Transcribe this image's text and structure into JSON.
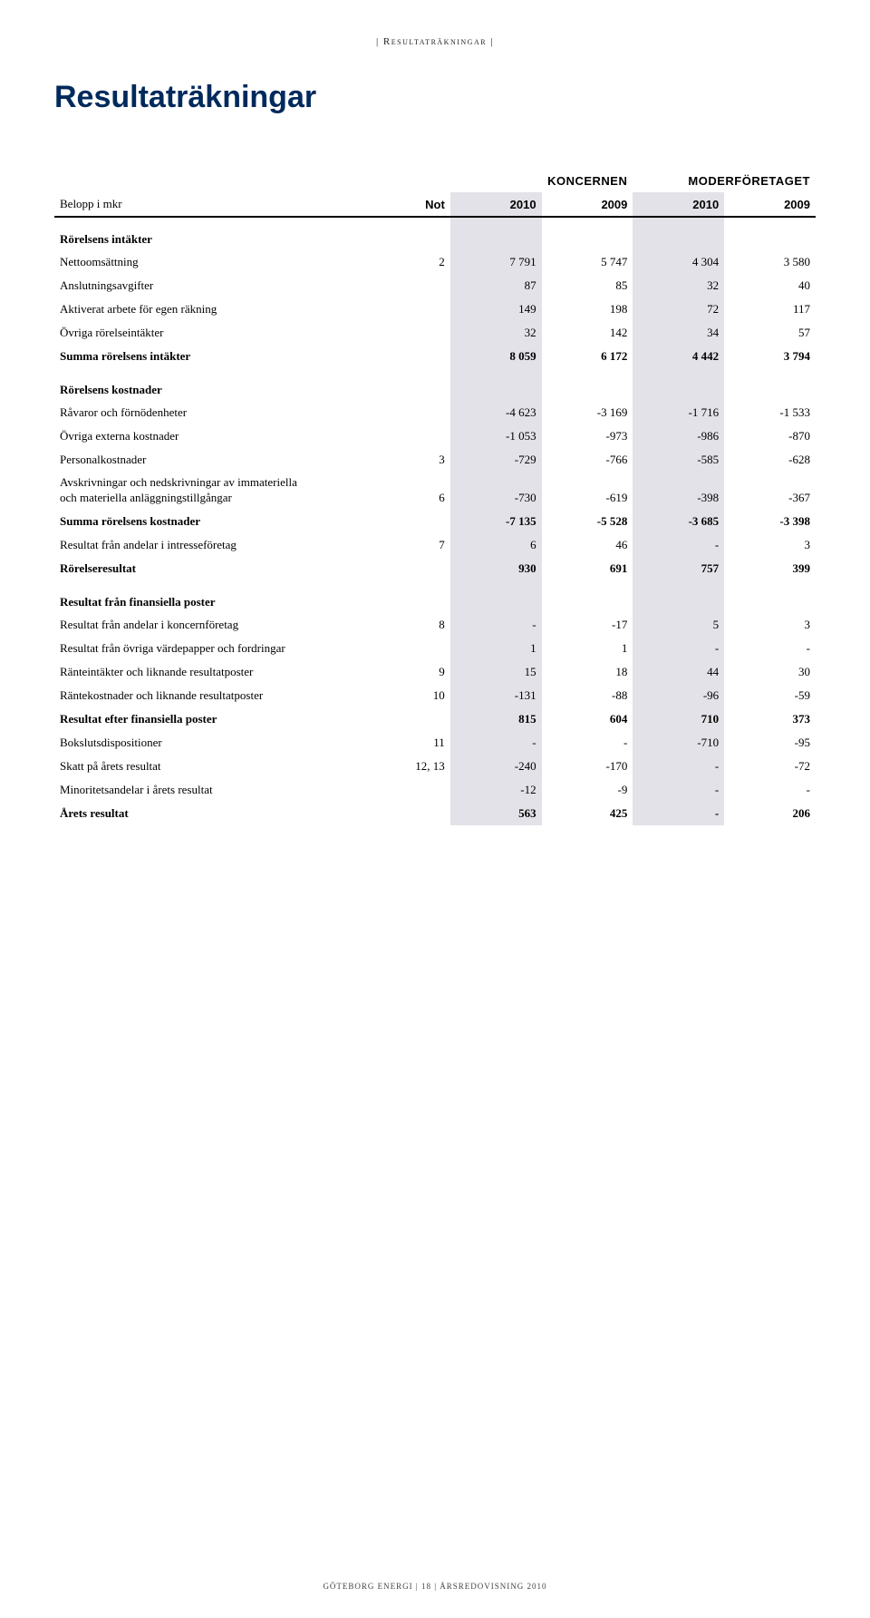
{
  "top_marker": "| Resultaträkningar |",
  "page_title": "Resultaträkningar",
  "column_groups": {
    "group1": "KONCERNEN",
    "group2": "MODERFÖRETAGET"
  },
  "columns": {
    "label": "Belopp i mkr",
    "not": "Not",
    "k10": "2010",
    "k09": "2009",
    "m10": "2010",
    "m09": "2009"
  },
  "sections": [
    {
      "title": "Rörelsens intäkter",
      "rows": [
        {
          "label": "Nettoomsättning",
          "not": "2",
          "k10": "7 791",
          "k09": "5 747",
          "m10": "4 304",
          "m09": "3 580"
        },
        {
          "label": "Anslutningsavgifter",
          "not": "",
          "k10": "87",
          "k09": "85",
          "m10": "32",
          "m09": "40"
        },
        {
          "label": "Aktiverat arbete för egen räkning",
          "not": "",
          "k10": "149",
          "k09": "198",
          "m10": "72",
          "m09": "117"
        },
        {
          "label": "Övriga rörelseintäkter",
          "not": "",
          "k10": "32",
          "k09": "142",
          "m10": "34",
          "m09": "57"
        }
      ],
      "total": {
        "label": "Summa rörelsens intäkter",
        "not": "",
        "k10": "8 059",
        "k09": "6 172",
        "m10": "4 442",
        "m09": "3 794"
      }
    },
    {
      "title": "Rörelsens kostnader",
      "rows": [
        {
          "label": "Råvaror och förnödenheter",
          "not": "",
          "k10": "-4 623",
          "k09": "-3 169",
          "m10": "-1 716",
          "m09": "-1 533"
        },
        {
          "label": "Övriga externa kostnader",
          "not": "",
          "k10": "-1 053",
          "k09": "-973",
          "m10": "-986",
          "m09": "-870"
        },
        {
          "label": "Personalkostnader",
          "not": "3",
          "k10": "-729",
          "k09": "-766",
          "m10": "-585",
          "m09": "-628"
        },
        {
          "label": "Avskrivningar och nedskrivningar av immateriella\noch materiella anläggningstillgångar",
          "not": "6",
          "k10": "-730",
          "k09": "-619",
          "m10": "-398",
          "m09": "-367",
          "multiline": true
        }
      ],
      "total": {
        "label": "Summa rörelsens kostnader",
        "not": "",
        "k10": "-7 135",
        "k09": "-5 528",
        "m10": "-3 685",
        "m09": "-3 398"
      }
    },
    {
      "title": "",
      "rows": [
        {
          "label": "Resultat från andelar i intresseföretag",
          "not": "7",
          "k10": "6",
          "k09": "46",
          "m10": "-",
          "m09": "3"
        }
      ],
      "total": {
        "label": "Rörelseresultat",
        "not": "",
        "k10": "930",
        "k09": "691",
        "m10": "757",
        "m09": "399"
      }
    },
    {
      "title": "Resultat från finansiella poster",
      "rows": [
        {
          "label": "Resultat från andelar i koncernföretag",
          "not": "8",
          "k10": "-",
          "k09": "-17",
          "m10": "5",
          "m09": "3"
        },
        {
          "label": "Resultat från övriga värdepapper och fordringar",
          "not": "",
          "k10": "1",
          "k09": "1",
          "m10": "-",
          "m09": "-"
        },
        {
          "label": "Ränteintäkter och liknande resultatposter",
          "not": "9",
          "k10": "15",
          "k09": "18",
          "m10": "44",
          "m09": "30"
        },
        {
          "label": "Räntekostnader och liknande resultatposter",
          "not": "10",
          "k10": "-131",
          "k09": "-88",
          "m10": "-96",
          "m09": "-59"
        }
      ],
      "total": {
        "label": "Resultat efter finansiella poster",
        "not": "",
        "k10": "815",
        "k09": "604",
        "m10": "710",
        "m09": "373"
      }
    },
    {
      "title": "",
      "rows": [
        {
          "label": "Bokslutsdispositioner",
          "not": "11",
          "k10": "-",
          "k09": "-",
          "m10": "-710",
          "m09": "-95"
        },
        {
          "label": "Skatt på årets resultat",
          "not": "12, 13",
          "k10": "-240",
          "k09": "-170",
          "m10": "-",
          "m09": "-72"
        },
        {
          "label": "Minoritetsandelar i årets resultat",
          "not": "",
          "k10": "-12",
          "k09": "-9",
          "m10": "-",
          "m09": "-"
        }
      ],
      "total": {
        "label": "Årets resultat",
        "not": "",
        "k10": "563",
        "k09": "425",
        "m10": "-",
        "m09": "206"
      }
    }
  ],
  "footer": "GÖTEBORG ENERGI | 18 | ÅRSREDOVISNING 2010",
  "colors": {
    "title": "#002a5c",
    "shade": "#e2e2e8",
    "text": "#000000"
  }
}
